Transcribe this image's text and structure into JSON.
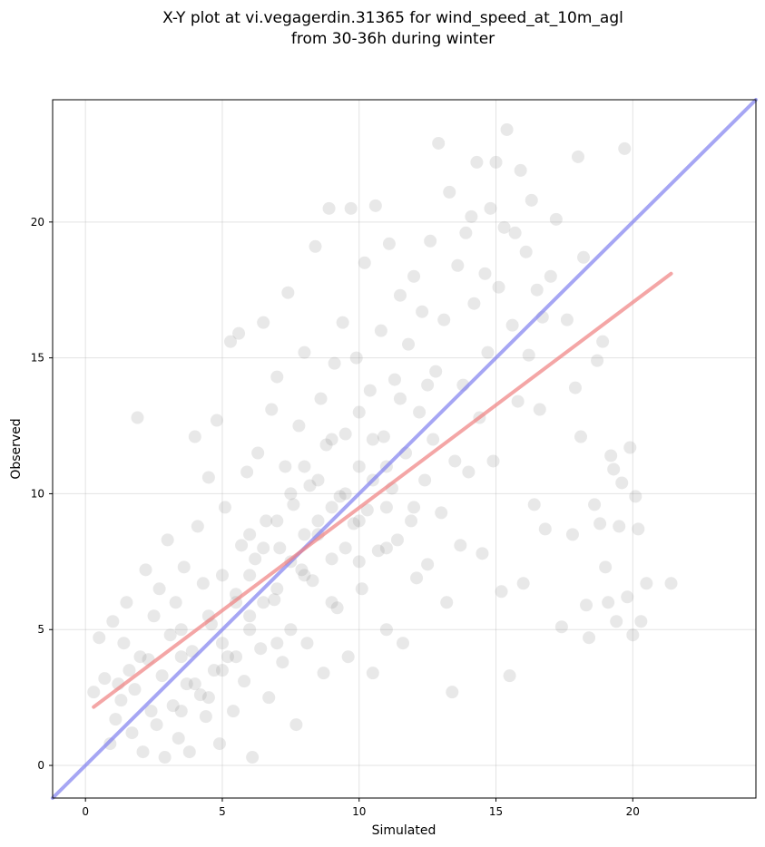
{
  "chart_data": {
    "type": "scatter",
    "title": "X-Y plot at vi.vegagerdin.31365 for wind_speed_at_10m_agl",
    "subtitle": "from 30-36h during winter",
    "xlabel": "Simulated",
    "ylabel": "Observed",
    "xlim": [
      -1.2,
      24.5
    ],
    "ylim": [
      -1.2,
      24.5
    ],
    "xticks": [
      0,
      5,
      10,
      15,
      20
    ],
    "yticks": [
      0,
      5,
      10,
      15,
      20
    ],
    "grid": true,
    "point_color": "#808080",
    "points": [
      [
        0.3,
        2.7
      ],
      [
        0.5,
        4.7
      ],
      [
        0.7,
        3.2
      ],
      [
        0.9,
        0.8
      ],
      [
        1.0,
        5.3
      ],
      [
        1.1,
        1.7
      ],
      [
        1.2,
        3.0
      ],
      [
        1.3,
        2.4
      ],
      [
        1.4,
        4.5
      ],
      [
        1.5,
        6.0
      ],
      [
        1.6,
        3.5
      ],
      [
        1.7,
        1.2
      ],
      [
        1.8,
        2.8
      ],
      [
        1.9,
        12.8
      ],
      [
        2.0,
        4.0
      ],
      [
        2.1,
        0.5
      ],
      [
        2.2,
        7.2
      ],
      [
        2.3,
        3.9
      ],
      [
        2.4,
        2.0
      ],
      [
        2.5,
        5.5
      ],
      [
        2.6,
        1.5
      ],
      [
        2.7,
        6.5
      ],
      [
        2.8,
        3.3
      ],
      [
        2.9,
        0.3
      ],
      [
        3.0,
        8.3
      ],
      [
        3.1,
        4.8
      ],
      [
        3.2,
        2.2
      ],
      [
        3.3,
        6.0
      ],
      [
        3.4,
        1.0
      ],
      [
        3.5,
        5.0
      ],
      [
        3.6,
        7.3
      ],
      [
        3.7,
        3.0
      ],
      [
        3.8,
        0.5
      ],
      [
        3.9,
        4.2
      ],
      [
        4.0,
        12.1
      ],
      [
        4.1,
        8.8
      ],
      [
        4.2,
        2.6
      ],
      [
        4.3,
        6.7
      ],
      [
        4.4,
        1.8
      ],
      [
        4.5,
        10.6
      ],
      [
        4.6,
        5.2
      ],
      [
        4.7,
        3.5
      ],
      [
        4.8,
        12.7
      ],
      [
        4.9,
        0.8
      ],
      [
        5.0,
        7.0
      ],
      [
        5.1,
        9.5
      ],
      [
        5.2,
        4.0
      ],
      [
        5.3,
        15.6
      ],
      [
        5.4,
        2.0
      ],
      [
        5.5,
        6.3
      ],
      [
        5.6,
        15.9
      ],
      [
        5.7,
        8.1
      ],
      [
        5.8,
        3.1
      ],
      [
        5.9,
        10.8
      ],
      [
        6.0,
        5.5
      ],
      [
        6.1,
        0.3
      ],
      [
        6.2,
        7.6
      ],
      [
        6.3,
        11.5
      ],
      [
        6.4,
        4.3
      ],
      [
        6.5,
        16.3
      ],
      [
        6.6,
        9.0
      ],
      [
        6.7,
        2.5
      ],
      [
        6.8,
        13.1
      ],
      [
        6.9,
        6.1
      ],
      [
        7.0,
        14.3
      ],
      [
        7.1,
        8.0
      ],
      [
        7.2,
        3.8
      ],
      [
        7.3,
        11.0
      ],
      [
        7.4,
        17.4
      ],
      [
        7.5,
        5.0
      ],
      [
        7.6,
        9.6
      ],
      [
        7.7,
        1.5
      ],
      [
        7.8,
        12.5
      ],
      [
        7.9,
        7.2
      ],
      [
        8.0,
        15.2
      ],
      [
        8.1,
        4.5
      ],
      [
        8.2,
        10.3
      ],
      [
        8.3,
        6.8
      ],
      [
        8.4,
        19.1
      ],
      [
        8.5,
        8.5
      ],
      [
        8.6,
        13.5
      ],
      [
        8.7,
        3.4
      ],
      [
        8.8,
        11.8
      ],
      [
        8.9,
        20.5
      ],
      [
        9.0,
        7.6
      ],
      [
        9.1,
        14.8
      ],
      [
        9.2,
        5.8
      ],
      [
        9.3,
        9.9
      ],
      [
        9.4,
        16.3
      ],
      [
        9.5,
        12.2
      ],
      [
        9.6,
        4.0
      ],
      [
        9.7,
        20.5
      ],
      [
        9.8,
        8.9
      ],
      [
        9.9,
        15.0
      ],
      [
        10.0,
        11.0
      ],
      [
        10.1,
        6.5
      ],
      [
        10.2,
        18.5
      ],
      [
        10.3,
        9.4
      ],
      [
        10.4,
        13.8
      ],
      [
        10.5,
        3.4
      ],
      [
        10.6,
        20.6
      ],
      [
        10.7,
        7.9
      ],
      [
        10.8,
        16.0
      ],
      [
        10.9,
        12.1
      ],
      [
        11.0,
        5.0
      ],
      [
        11.1,
        19.2
      ],
      [
        11.2,
        10.2
      ],
      [
        11.3,
        14.2
      ],
      [
        11.4,
        8.3
      ],
      [
        11.5,
        17.3
      ],
      [
        11.6,
        4.5
      ],
      [
        11.7,
        11.5
      ],
      [
        11.8,
        15.5
      ],
      [
        11.9,
        9.0
      ],
      [
        12.0,
        18.0
      ],
      [
        12.1,
        6.9
      ],
      [
        12.2,
        13.0
      ],
      [
        12.3,
        16.7
      ],
      [
        12.4,
        10.5
      ],
      [
        12.5,
        7.4
      ],
      [
        12.6,
        19.3
      ],
      [
        12.7,
        12.0
      ],
      [
        12.8,
        14.5
      ],
      [
        12.9,
        22.9
      ],
      [
        13.0,
        9.3
      ],
      [
        13.1,
        16.4
      ],
      [
        13.2,
        6.0
      ],
      [
        13.3,
        21.1
      ],
      [
        13.4,
        2.7
      ],
      [
        13.5,
        11.2
      ],
      [
        13.6,
        18.4
      ],
      [
        13.7,
        8.1
      ],
      [
        13.8,
        14.0
      ],
      [
        13.9,
        19.6
      ],
      [
        14.0,
        10.8
      ],
      [
        14.1,
        20.2
      ],
      [
        14.2,
        17.0
      ],
      [
        14.3,
        22.2
      ],
      [
        14.4,
        12.8
      ],
      [
        14.5,
        7.8
      ],
      [
        14.6,
        18.1
      ],
      [
        14.7,
        15.2
      ],
      [
        14.8,
        20.5
      ],
      [
        14.9,
        11.2
      ],
      [
        15.0,
        22.2
      ],
      [
        15.1,
        17.6
      ],
      [
        15.2,
        6.4
      ],
      [
        15.3,
        19.8
      ],
      [
        15.4,
        23.4
      ],
      [
        15.5,
        3.3
      ],
      [
        15.6,
        16.2
      ],
      [
        15.7,
        19.6
      ],
      [
        15.8,
        13.4
      ],
      [
        15.9,
        21.9
      ],
      [
        16.0,
        6.7
      ],
      [
        16.1,
        18.9
      ],
      [
        16.2,
        15.1
      ],
      [
        16.3,
        20.8
      ],
      [
        16.4,
        9.6
      ],
      [
        16.5,
        17.5
      ],
      [
        16.6,
        13.1
      ],
      [
        16.7,
        16.5
      ],
      [
        16.8,
        8.7
      ],
      [
        17.0,
        18.0
      ],
      [
        17.2,
        20.1
      ],
      [
        17.4,
        5.1
      ],
      [
        17.6,
        16.4
      ],
      [
        17.8,
        8.5
      ],
      [
        17.9,
        13.9
      ],
      [
        18.0,
        22.4
      ],
      [
        18.1,
        12.1
      ],
      [
        18.2,
        18.7
      ],
      [
        18.3,
        5.9
      ],
      [
        18.4,
        4.7
      ],
      [
        18.6,
        9.6
      ],
      [
        18.7,
        14.9
      ],
      [
        18.8,
        8.9
      ],
      [
        18.9,
        15.6
      ],
      [
        19.0,
        7.3
      ],
      [
        19.1,
        6.0
      ],
      [
        19.2,
        11.4
      ],
      [
        19.3,
        10.9
      ],
      [
        19.4,
        5.3
      ],
      [
        19.5,
        8.8
      ],
      [
        19.6,
        10.4
      ],
      [
        19.7,
        22.7
      ],
      [
        19.8,
        6.2
      ],
      [
        19.9,
        11.7
      ],
      [
        20.0,
        4.8
      ],
      [
        20.1,
        9.9
      ],
      [
        20.2,
        8.7
      ],
      [
        20.3,
        5.3
      ],
      [
        20.5,
        6.7
      ],
      [
        21.4,
        6.7
      ],
      [
        3.5,
        4.0
      ],
      [
        4.0,
        3.0
      ],
      [
        4.5,
        5.5
      ],
      [
        5.0,
        4.5
      ],
      [
        5.5,
        6.0
      ],
      [
        6.0,
        7.0
      ],
      [
        6.5,
        8.0
      ],
      [
        7.0,
        6.5
      ],
      [
        7.5,
        7.5
      ],
      [
        8.0,
        8.5
      ],
      [
        8.5,
        9.0
      ],
      [
        9.0,
        9.5
      ],
      [
        9.5,
        10.0
      ],
      [
        10.0,
        9.0
      ],
      [
        10.5,
        10.5
      ],
      [
        11.0,
        11.0
      ],
      [
        7.0,
        9.0
      ],
      [
        8.0,
        7.0
      ],
      [
        6.0,
        5.0
      ],
      [
        5.0,
        3.5
      ],
      [
        9.0,
        12.0
      ],
      [
        10.0,
        13.0
      ],
      [
        11.0,
        8.0
      ],
      [
        12.0,
        9.5
      ],
      [
        8.5,
        10.5
      ],
      [
        7.5,
        10.0
      ],
      [
        6.5,
        6.0
      ],
      [
        5.5,
        4.0
      ],
      [
        4.5,
        2.5
      ],
      [
        3.5,
        2.0
      ],
      [
        9.5,
        8.0
      ],
      [
        10.5,
        12.0
      ],
      [
        11.5,
        13.5
      ],
      [
        12.5,
        14.0
      ],
      [
        6.0,
        8.5
      ],
      [
        7.0,
        4.5
      ],
      [
        8.0,
        11.0
      ],
      [
        9.0,
        6.0
      ],
      [
        10.0,
        7.5
      ],
      [
        11.0,
        9.5
      ]
    ],
    "fit_line": {
      "color": "#f08080",
      "x": [
        0.3,
        21.4
      ],
      "y": [
        2.15,
        18.1
      ]
    },
    "identity_line": {
      "color": "#8080f0",
      "x": [
        -1.2,
        24.5
      ],
      "y": [
        -1.2,
        24.5
      ]
    }
  }
}
